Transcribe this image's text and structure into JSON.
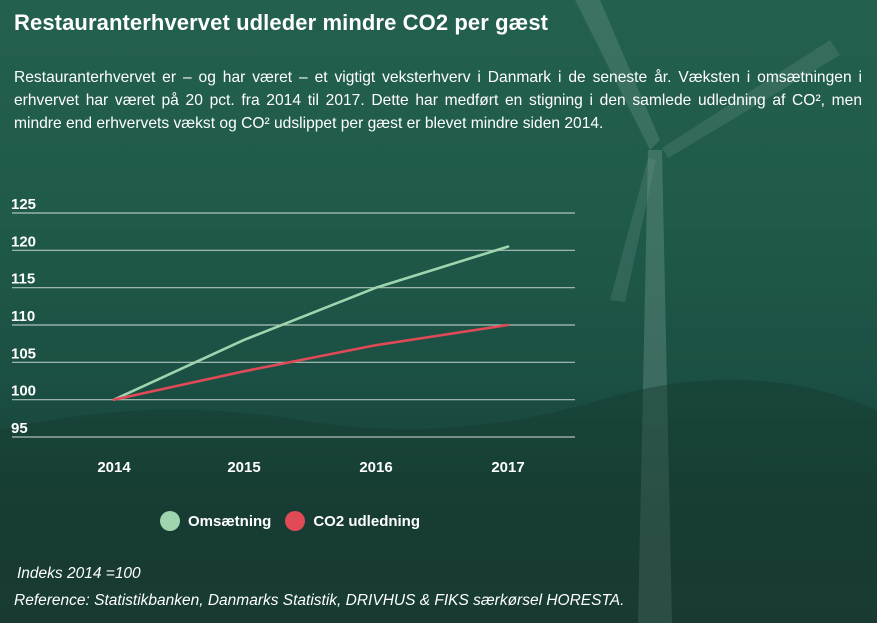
{
  "title": "Restauranterhvervet udleder mindre CO2 per gæst",
  "intro": "Restauranterhvervet er – og har været – et vigtigt veksterhverv i Danmark i de seneste år. Væksten i omsætningen i erhvervet har været på 20 pct. fra 2014 til 2017. Dette har medført en stigning i den samlede udledning af CO², men mindre end erhvervets vækst og CO² udslippet per gæst er blevet mindre siden 2014.",
  "colors": {
    "background": "#1f5a4a",
    "omsaetning": "#9fd5ae",
    "co2": "#e04a56",
    "gridline": "#c9d6d0"
  },
  "chart_data": {
    "type": "line",
    "x": [
      "2014",
      "2015",
      "2016",
      "2017"
    ],
    "series": [
      {
        "name": "Omsætning",
        "values": [
          100,
          108,
          115,
          120.5
        ]
      },
      {
        "name": "CO2 udledning",
        "values": [
          100,
          103.8,
          107.3,
          110
        ]
      }
    ],
    "yticks": [
      95,
      100,
      105,
      110,
      115,
      120,
      125
    ],
    "ylim": [
      95,
      125
    ],
    "grid": true,
    "legend_position": "bottom"
  },
  "legend": [
    {
      "label": "Omsætning",
      "color": "#9fd5ae"
    },
    {
      "label": "CO2 udledning",
      "color": "#e04a56"
    }
  ],
  "footnote": {
    "note": "Indeks 2014 =100",
    "source": "Reference: Statistikbanken, Danmarks Statistik, DRIVHUS & FIKS særkørsel HORESTA."
  }
}
